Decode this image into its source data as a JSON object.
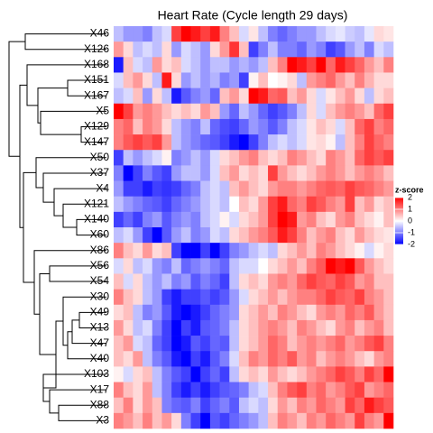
{
  "chart_data": {
    "type": "heatmap",
    "title": "Heart Rate (Cycle length 29 days)",
    "rows": [
      "X46",
      "X126",
      "X168",
      "X151",
      "X167",
      "X5",
      "X129",
      "X147",
      "X50",
      "X37",
      "X4",
      "X121",
      "X140",
      "X60",
      "X86",
      "X56",
      "X54",
      "X30",
      "X49",
      "X13",
      "X47",
      "X40",
      "X103",
      "X17",
      "X88",
      "X3"
    ],
    "values": [
      [
        -0.5,
        -0.8,
        -0.8,
        -1,
        -0.5,
        -0.3,
        1.5,
        2,
        1.8,
        1.5,
        1.8,
        1,
        0.5,
        -0.3,
        0.2,
        -0.5,
        -1,
        -1.2,
        -1,
        -0.8,
        -0.8,
        -0.5,
        -0.3,
        -0.2,
        -0.4,
        -0.5,
        -0.2,
        0.3,
        0.2
      ],
      [
        0.8,
        0.3,
        -0.5,
        -0.3,
        -0.5,
        0.3,
        -0.8,
        -0.3,
        -0.5,
        -0.8,
        0.3,
        0.8,
        1.6,
        0.5,
        -1.5,
        -1,
        -0.5,
        -1,
        -1,
        -1.2,
        -0.8,
        -1,
        -1.5,
        -1.3,
        -0.8,
        -0.5,
        -1,
        -0.3,
        -0.5
      ],
      [
        -1.8,
        0.5,
        -0.3,
        -0.5,
        0.8,
        0.3,
        0.5,
        -0.3,
        -0.5,
        -0.8,
        -0.5,
        -0.5,
        -0.8,
        -0.6,
        -0.8,
        -0.5,
        0.5,
        1,
        2,
        1.8,
        1.5,
        2,
        1.2,
        1.8,
        1.5,
        1.2,
        0.8,
        0.5,
        1
      ],
      [
        -0.3,
        0.5,
        0.8,
        0.3,
        -0.5,
        1.8,
        0.3,
        -0.8,
        -0.5,
        -0.8,
        -0.6,
        -1,
        -0.8,
        -1.5,
        0.1,
        0.5,
        0,
        0.1,
        0.3,
        -0.5,
        0.8,
        1,
        1.2,
        0.8,
        0.5,
        1,
        0.6,
        0.3,
        0.3
      ],
      [
        -0.5,
        -0.3,
        0.5,
        -0.8,
        0.3,
        -0.5,
        -1.8,
        -1.3,
        -1,
        -0.8,
        -1.2,
        0.5,
        0.8,
        0.3,
        2,
        1.8,
        1.2,
        1.3,
        0.5,
        0.8,
        0.3,
        -0.3,
        0.2,
        0.5,
        0.8,
        0.3,
        -0.5,
        0.3,
        0.5
      ],
      [
        2,
        1.5,
        0.8,
        1,
        0.8,
        0.5,
        0.3,
        0.5,
        0.3,
        0.8,
        0.5,
        -0.8,
        -1.2,
        -0.5,
        -0.8,
        -1.2,
        -1.5,
        -1.3,
        -1,
        -0.5,
        0.3,
        -0.3,
        0.5,
        0.8,
        1,
        0.8,
        0.5,
        1.2,
        1.5
      ],
      [
        1,
        1.2,
        0.5,
        1,
        0.8,
        0.3,
        -0.5,
        -0.8,
        -1,
        -0.5,
        -1.2,
        -1.4,
        -1.5,
        -1.2,
        -0.8,
        -1,
        -1.3,
        -1,
        -0.5,
        -0.3,
        0.2,
        0.5,
        0.3,
        -0.3,
        0.5,
        1.2,
        1.5,
        1,
        1.2
      ],
      [
        1,
        1.3,
        1.5,
        1.3,
        1.5,
        0.8,
        -0.5,
        -0.8,
        -1,
        -1.2,
        -1.3,
        -1.5,
        -1.8,
        -2,
        -1.5,
        -1,
        -0.5,
        -0.3,
        -0.5,
        -0.3,
        0.2,
        0.3,
        0.1,
        -0.5,
        0.5,
        1,
        1.5,
        1.2,
        1
      ],
      [
        -1.5,
        -0.5,
        -0.8,
        -0.5,
        -0.3,
        0.1,
        -1,
        -0.8,
        -0.5,
        -0.8,
        -0.3,
        0.3,
        0.5,
        0.8,
        1,
        0.5,
        0.3,
        0.5,
        1,
        0.8,
        0.5,
        0.3,
        1,
        0.8,
        0.5,
        1.2,
        1.5,
        1.3,
        1.5
      ],
      [
        -1,
        -2,
        -1.5,
        -1,
        -1.3,
        -1.5,
        -0.8,
        -0.5,
        -0.5,
        -0.8,
        -0.3,
        0.5,
        0.8,
        0.3,
        0.5,
        0.3,
        1.5,
        0.8,
        0.5,
        0.3,
        0.5,
        0.8,
        1,
        0.8,
        0.5,
        0.8,
        1,
        0.8,
        0.5
      ],
      [
        -0.8,
        -1.5,
        -1.5,
        -1.8,
        -1.5,
        -1.6,
        -1.5,
        -1.2,
        -1,
        -0.5,
        -0.3,
        -0.5,
        0.5,
        0.8,
        0.5,
        0.3,
        0.8,
        1,
        1,
        0.8,
        1,
        1.2,
        1.3,
        1.2,
        1.5,
        1.3,
        1.2,
        1,
        0.8
      ],
      [
        -0.5,
        -0.8,
        -1,
        -1.2,
        -1.3,
        -1.5,
        -1.2,
        -1,
        -0.8,
        -0.5,
        -0.3,
        -0.5,
        0,
        0.5,
        0.3,
        0.8,
        1.5,
        1.8,
        1.2,
        1,
        1.5,
        1.3,
        1,
        0.8,
        1.5,
        0.5,
        0.8,
        0.3,
        0.5
      ],
      [
        -1.5,
        -1.2,
        -1.5,
        -1,
        -0.8,
        -1.3,
        -1,
        -0.8,
        -1,
        -0.5,
        -0.3,
        0.1,
        -0.3,
        0.3,
        0.5,
        0.8,
        1.5,
        2,
        1.8,
        0.8,
        1,
        0.5,
        0.3,
        0.8,
        1,
        0.5,
        0.3,
        0.1,
        0.5
      ],
      [
        -0.5,
        -0.3,
        -0.8,
        -1.5,
        -2,
        -1.3,
        -0.8,
        -0.5,
        -1,
        -0.8,
        -0.3,
        -0.5,
        0.3,
        0.5,
        0.8,
        1,
        1.3,
        1.8,
        1.5,
        1,
        0.5,
        0.8,
        1,
        0.5,
        0.3,
        0.8,
        0.5,
        0.3,
        0.2
      ],
      [
        1,
        0.5,
        0.3,
        0.8,
        0.3,
        0.5,
        -1.5,
        -2,
        -2,
        -1.5,
        -2,
        -1.5,
        -1,
        -0.8,
        -0.5,
        -0.3,
        -0.5,
        0.3,
        0.5,
        0.8,
        0.5,
        1,
        0.8,
        0.5,
        0.3,
        0.1,
        -0.3,
        0.1,
        0.3
      ],
      [
        -0.3,
        0.3,
        -0.5,
        -0.3,
        -0.8,
        -1,
        -0.5,
        -1.2,
        -1,
        -0.8,
        -1,
        -1.2,
        -0.5,
        -0.3,
        -0.3,
        0,
        0.3,
        0.5,
        0.8,
        0.5,
        1,
        1.3,
        2,
        1.8,
        2,
        1.3,
        0.8,
        0.5,
        0.3
      ],
      [
        0.5,
        -0.3,
        0.3,
        -0.5,
        -0.8,
        -0.5,
        -1,
        -0.8,
        -1.3,
        -1,
        -1.2,
        -1.5,
        -0.5,
        0.3,
        0.5,
        0.3,
        0.8,
        1,
        0.8,
        1.2,
        1.5,
        1.3,
        1.2,
        1.5,
        1.3,
        0.8,
        1,
        0.5,
        0.5
      ],
      [
        1,
        0.5,
        0.3,
        -0.5,
        -0.8,
        -1.5,
        -1.8,
        -1.5,
        -1.5,
        -1.3,
        -1.5,
        -1.3,
        -0.8,
        -0.3,
        0.3,
        0.5,
        0.8,
        0.5,
        0.8,
        1,
        1,
        1.2,
        1.5,
        1.3,
        1.2,
        1.5,
        1,
        0.8,
        0.5
      ],
      [
        0.3,
        0.5,
        -0.5,
        -1,
        -0.8,
        -1.3,
        -1.8,
        -2,
        -1.8,
        -1.5,
        -1.2,
        -1,
        -0.8,
        0.3,
        0.5,
        0.8,
        0.5,
        1,
        0.8,
        0.5,
        0.3,
        0.8,
        1,
        0.8,
        1.2,
        1,
        1.3,
        0.8,
        0.5
      ],
      [
        0.8,
        0.3,
        -0.5,
        -0.3,
        -1,
        -1.5,
        -2,
        -1.5,
        -1.8,
        -1.3,
        -1.2,
        -1,
        -0.5,
        0.3,
        0.5,
        0.8,
        1,
        0.8,
        0.5,
        1,
        0.8,
        0.5,
        0.3,
        0.8,
        1,
        0.5,
        0.8,
        1,
        0.5
      ],
      [
        0.5,
        0.8,
        -0.3,
        -0.5,
        -1.2,
        -1.5,
        -2,
        -1.8,
        -1.3,
        -1.5,
        -1.2,
        -1.3,
        -0.5,
        0.3,
        0.5,
        0.8,
        1.2,
        1,
        0.5,
        0.8,
        1,
        0.8,
        1,
        1.2,
        0.8,
        1,
        1.3,
        1.5,
        1
      ],
      [
        0.5,
        0.3,
        0.8,
        -0.5,
        -1,
        -1.3,
        -1.8,
        -2,
        -1.5,
        -1.8,
        -1.3,
        -1,
        -0.3,
        0.5,
        1,
        0.8,
        1.2,
        1,
        1.3,
        0.8,
        1,
        0.5,
        0.8,
        1,
        0.8,
        0.5,
        0.3,
        0.8,
        1
      ],
      [
        0.1,
        -0.3,
        0.3,
        0.5,
        -0.5,
        -1,
        -1.3,
        -1.5,
        -2,
        -1.5,
        -1.2,
        -1.5,
        -0.5,
        0.3,
        0.5,
        0.3,
        0.8,
        0.5,
        0.3,
        0.5,
        0.8,
        1,
        1.2,
        1.5,
        1.3,
        1,
        1.5,
        1.2,
        2
      ],
      [
        1,
        0.5,
        0.3,
        0.8,
        -0.5,
        -1,
        -1.5,
        -1.8,
        -1.5,
        -1.8,
        -1.5,
        -1.3,
        -1.2,
        -1,
        -0.5,
        -0.3,
        0.5,
        1,
        1.3,
        1.5,
        1,
        1.2,
        0.8,
        1,
        1.3,
        1.5,
        0.8,
        1,
        1.2
      ],
      [
        0.5,
        1,
        0.3,
        0.8,
        0.5,
        -1,
        -1.2,
        -1.3,
        -1,
        -1.5,
        -1.2,
        -1,
        -1.3,
        -0.5,
        -0.3,
        -0.5,
        0.3,
        0.8,
        0.5,
        1,
        0.8,
        1.2,
        1,
        0.8,
        1.5,
        1.2,
        1.8,
        1.5,
        1.3
      ],
      [
        1,
        0.8,
        0.5,
        1,
        0.5,
        0.8,
        0.3,
        -1,
        -1.5,
        -2,
        -1.3,
        -1.5,
        -1.2,
        -1,
        -0.8,
        -0.5,
        0.5,
        1,
        0.8,
        0.5,
        1,
        0.8,
        1.2,
        1,
        0.8,
        1.5,
        1,
        0.8,
        2
      ]
    ],
    "colors": {
      "low": "#0000ff",
      "mid": "#ffffff",
      "high": "#ff0000"
    },
    "clim": [
      -2,
      2
    ],
    "legend": {
      "title": "z-score",
      "ticks": [
        2,
        1,
        0,
        -1,
        -2
      ]
    }
  }
}
